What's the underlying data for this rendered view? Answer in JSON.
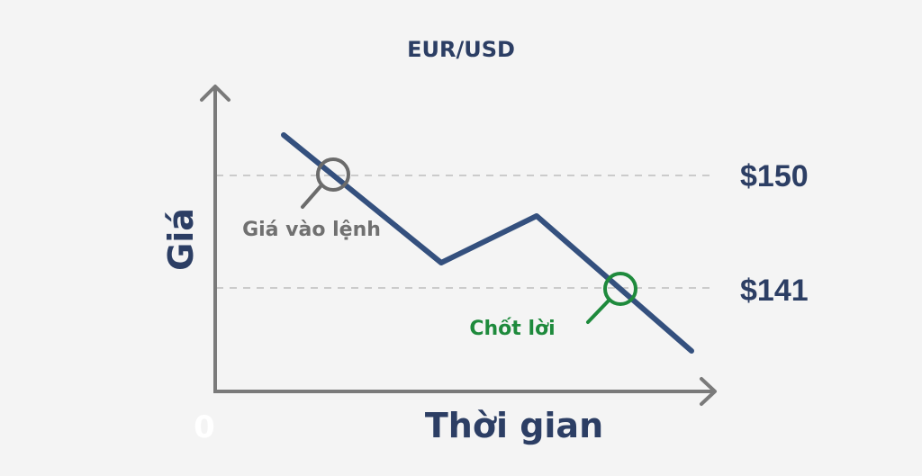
{
  "title": "EUR/USD",
  "y_axis_label": "Giá",
  "x_axis_label": "Thời gian",
  "origin_label": "0",
  "levels": [
    {
      "label": "$150",
      "value": 150
    },
    {
      "label": "$141",
      "value": 141
    }
  ],
  "markers": [
    {
      "label": "Giá vào lệnh",
      "level": 150,
      "color": "#6b6b6b"
    },
    {
      "label": "Chốt lời",
      "level": 141,
      "color": "#1e8a3c"
    }
  ],
  "colors": {
    "background": "#f4f4f4",
    "axis": "#7a7a7a",
    "price_line": "#34507e",
    "text_dark": "#2c3e64",
    "gridline": "#bdbdbd"
  }
}
